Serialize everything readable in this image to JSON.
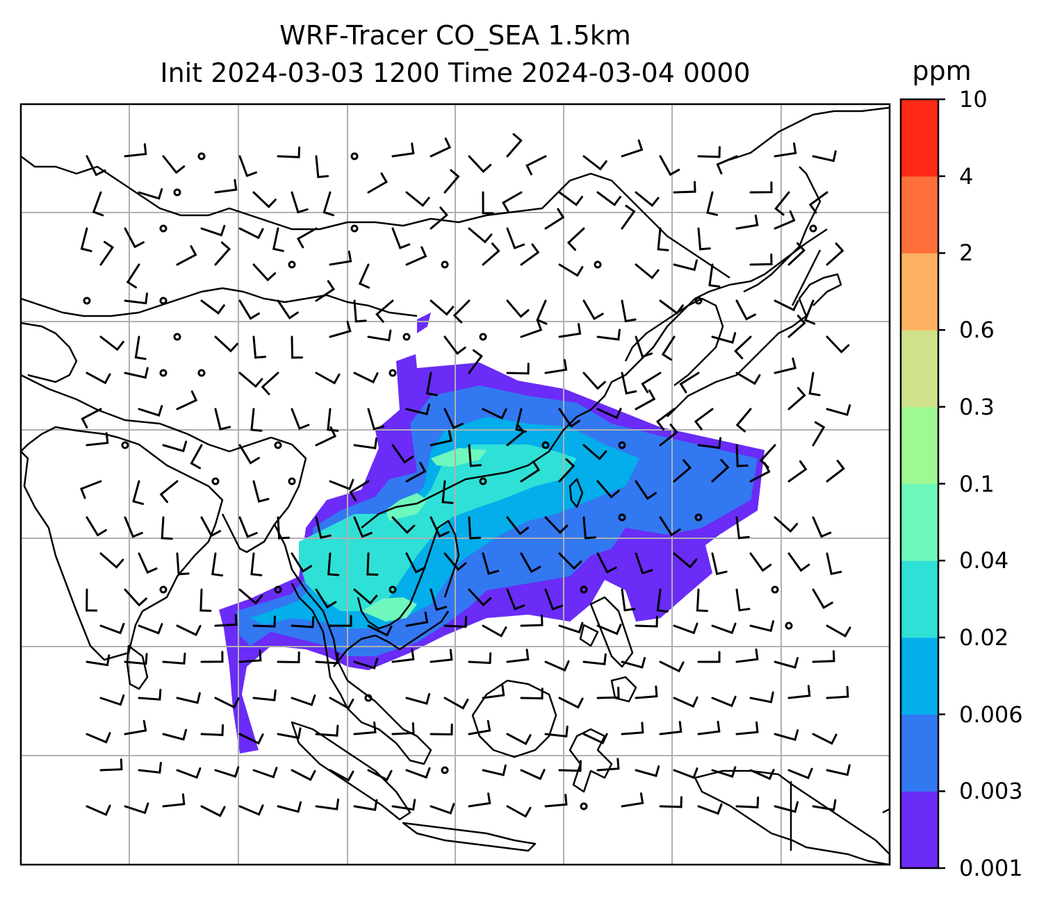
{
  "title_line1": "WRF-Tracer CO_SEA 1.5km",
  "title_line2": "Init 2024-03-03 1200 Time 2024-03-04 0000",
  "colorbar": {
    "unit": "ppm",
    "levels": [
      "0.001",
      "0.003",
      "0.006",
      "0.02",
      "0.04",
      "0.1",
      "0.3",
      "0.6",
      "2",
      "4",
      "10"
    ],
    "colors": [
      "#6a2cf6",
      "#3278f1",
      "#03aeea",
      "#2fe0d6",
      "#6ef8bd",
      "#9df993",
      "#d0e38a",
      "#feb161",
      "#fe703c",
      "#fe2a15"
    ]
  },
  "map": {
    "gridlines": true,
    "coastline_color": "#000000",
    "grid_color": "#b0b0b0",
    "tracer_field": "CO_SEA",
    "wind_barbs": true
  }
}
